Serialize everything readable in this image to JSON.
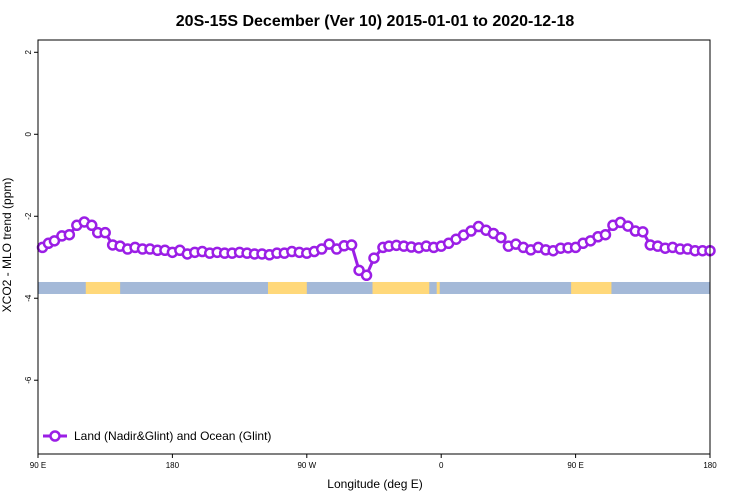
{
  "chart_data": {
    "type": "line",
    "title": "20S-15S December (Ver 10)   2015-01-01 to 2020-12-18",
    "xlabel": "Longitude (deg E)",
    "ylabel": "XCO2 - MLO trend (ppm)",
    "xlim": [
      90,
      540
    ],
    "ylim": [
      -7.8,
      2.3
    ],
    "x_ticks": [
      {
        "value": 90,
        "label": "90 E"
      },
      {
        "value": 180,
        "label": "180"
      },
      {
        "value": 270,
        "label": "90 W"
      },
      {
        "value": 360,
        "label": "0"
      },
      {
        "value": 450,
        "label": "90 E"
      },
      {
        "value": 540,
        "label": "180"
      }
    ],
    "y_ticks": [
      {
        "value": 2,
        "label": "2"
      },
      {
        "value": 0,
        "label": "0"
      },
      {
        "value": -2,
        "label": "-2"
      },
      {
        "value": -4,
        "label": "-4"
      },
      {
        "value": -6,
        "label": "-6"
      }
    ],
    "grid": false,
    "legend": {
      "position": "bottom-left",
      "entries": [
        "Land (Nadir&Glint) and Ocean (Glint)"
      ]
    },
    "series": [
      {
        "name": "Land (Nadir&Glint) and Ocean (Glint)",
        "color": "#9b1ee6",
        "x": [
          93,
          97,
          101,
          106,
          111,
          116,
          121,
          126,
          130,
          135,
          140,
          145,
          150,
          155,
          160,
          165,
          170,
          175,
          180,
          185,
          190,
          195,
          200,
          205,
          210,
          215,
          220,
          225,
          230,
          235,
          240,
          245,
          250,
          255,
          260,
          265,
          270,
          275,
          280,
          285,
          290,
          295,
          300,
          305,
          310,
          315,
          321,
          325,
          330,
          335,
          340,
          345,
          350,
          355,
          360,
          365,
          370,
          375,
          380,
          385,
          390,
          395,
          400,
          405,
          410,
          415,
          420,
          425,
          430,
          435,
          440,
          445,
          450,
          455,
          460,
          465,
          470,
          475,
          480,
          485,
          490,
          495,
          500,
          505,
          510,
          515,
          520,
          525,
          530,
          535,
          540
        ],
        "y": [
          -2.76,
          -2.66,
          -2.6,
          -2.48,
          -2.45,
          -2.22,
          -2.14,
          -2.22,
          -2.4,
          -2.4,
          -2.7,
          -2.73,
          -2.8,
          -2.76,
          -2.8,
          -2.8,
          -2.83,
          -2.83,
          -2.88,
          -2.83,
          -2.92,
          -2.88,
          -2.86,
          -2.9,
          -2.88,
          -2.9,
          -2.9,
          -2.88,
          -2.9,
          -2.92,
          -2.92,
          -2.94,
          -2.9,
          -2.9,
          -2.86,
          -2.88,
          -2.9,
          -2.86,
          -2.8,
          -2.68,
          -2.8,
          -2.72,
          -2.7,
          -3.32,
          -3.44,
          -3.02,
          -2.76,
          -2.73,
          -2.71,
          -2.73,
          -2.75,
          -2.77,
          -2.73,
          -2.76,
          -2.73,
          -2.66,
          -2.56,
          -2.46,
          -2.36,
          -2.25,
          -2.34,
          -2.42,
          -2.52,
          -2.73,
          -2.68,
          -2.76,
          -2.82,
          -2.76,
          -2.82,
          -2.84,
          -2.78,
          -2.77,
          -2.76,
          -2.66,
          -2.6,
          -2.5,
          -2.45,
          -2.22,
          -2.15,
          -2.24,
          -2.36,
          -2.38,
          -2.7,
          -2.73,
          -2.78,
          -2.76,
          -2.8,
          -2.8,
          -2.84,
          -2.84,
          -2.84
        ]
      }
    ],
    "surface_strip": {
      "y": -3.75,
      "ocean_color": "#a4b9d8",
      "land_color": "#ffd87a",
      "land_ranges": [
        [
          122,
          145
        ],
        [
          244,
          270
        ],
        [
          314,
          352
        ],
        [
          357,
          359
        ],
        [
          447,
          474
        ]
      ]
    }
  }
}
